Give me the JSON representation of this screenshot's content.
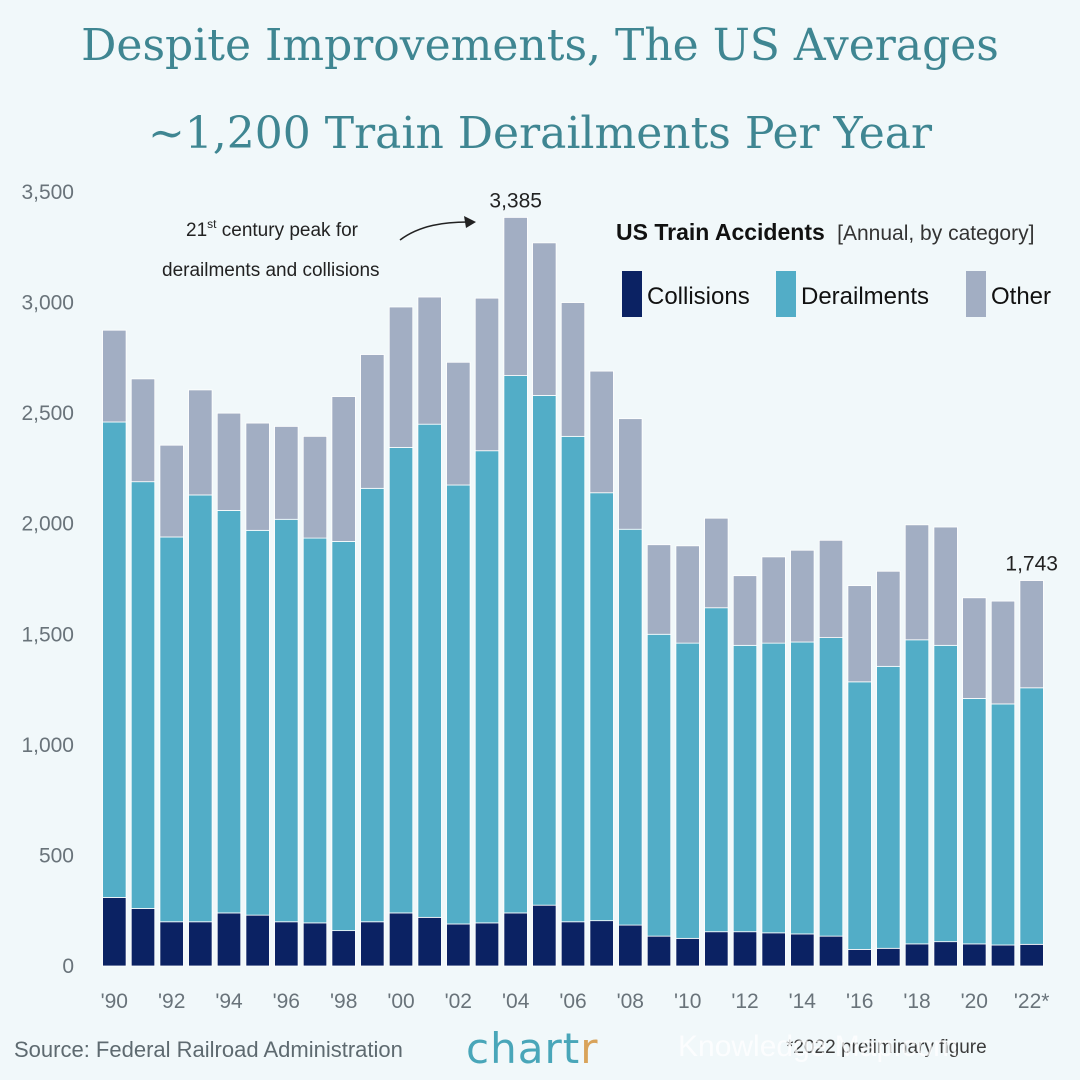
{
  "title": {
    "line1": "Despite Improvements, The US Averages",
    "line2": "~1,200 Train Derailments Per Year"
  },
  "legend": {
    "title": "US Train Accidents",
    "subtitle": "[Annual, by category]"
  },
  "annotation": {
    "line1_base": "21",
    "line1_sup": "st",
    "line1_rest": " century peak for",
    "line2": "derailments and collisions"
  },
  "footer": {
    "source": "Source: Federal Railroad Administration",
    "brand_main": "chart",
    "brand_accent": "r",
    "footnote": "*2022 preliminary figure",
    "watermark": "Knowledge Map.com"
  },
  "colors": {
    "background": "#f1f8fa",
    "collisions": "#0b2263",
    "derailments": "#52adc7",
    "other": "#a2aec3",
    "title": "#3f8692",
    "axis_text": "#69737a"
  },
  "chart_data": {
    "type": "bar",
    "stacked": true,
    "categories": [
      "1990",
      "1991",
      "1992",
      "1993",
      "1994",
      "1995",
      "1996",
      "1997",
      "1998",
      "1999",
      "2000",
      "2001",
      "2002",
      "2003",
      "2004",
      "2005",
      "2006",
      "2007",
      "2008",
      "2009",
      "2010",
      "2011",
      "2012",
      "2013",
      "2014",
      "2015",
      "2016",
      "2017",
      "2018",
      "2019",
      "2020",
      "2021",
      "2022"
    ],
    "x_tick_labels": [
      "'90",
      "'92",
      "'94",
      "'96",
      "'98",
      "'00",
      "'02",
      "'04",
      "'06",
      "'08",
      "'10",
      "'12",
      "'14",
      "'16",
      "'18",
      "'20",
      "'22*"
    ],
    "x_tick_every": 2,
    "series": [
      {
        "name": "Collisions",
        "color": "#0b2263",
        "values": [
          310,
          260,
          200,
          200,
          240,
          230,
          200,
          195,
          160,
          200,
          240,
          220,
          190,
          195,
          240,
          275,
          200,
          205,
          185,
          135,
          125,
          155,
          155,
          150,
          145,
          135,
          75,
          80,
          100,
          110,
          100,
          95,
          98
        ]
      },
      {
        "name": "Derailments",
        "color": "#52adc7",
        "values": [
          2150,
          1930,
          1740,
          1930,
          1820,
          1740,
          1820,
          1740,
          1760,
          1960,
          2105,
          2230,
          1985,
          2135,
          2430,
          2305,
          2195,
          1935,
          1790,
          1365,
          1335,
          1465,
          1295,
          1310,
          1320,
          1350,
          1210,
          1275,
          1375,
          1340,
          1110,
          1090,
          1160
        ]
      },
      {
        "name": "Other",
        "color": "#a2aec3",
        "values": [
          415,
          465,
          415,
          475,
          440,
          485,
          420,
          460,
          655,
          605,
          635,
          575,
          555,
          690,
          715,
          690,
          605,
          550,
          500,
          405,
          440,
          405,
          315,
          390,
          415,
          440,
          435,
          430,
          520,
          535,
          455,
          465,
          485
        ]
      }
    ],
    "totals": [
      2875,
      2655,
      2355,
      2605,
      2500,
      2455,
      2440,
      2395,
      2575,
      2765,
      2980,
      3025,
      2730,
      3020,
      3385,
      3270,
      3000,
      2690,
      2475,
      1905,
      1900,
      2025,
      1765,
      1850,
      1880,
      1925,
      1720,
      1785,
      1995,
      1985,
      1665,
      1650,
      1743
    ],
    "bar_labels": [
      {
        "category": "2004",
        "text": "3,385"
      },
      {
        "category": "2022",
        "text": "1,743"
      }
    ],
    "ylim": [
      0,
      3500
    ],
    "y_ticks": [
      0,
      500,
      1000,
      1500,
      2000,
      2500,
      3000,
      3500
    ],
    "y_tick_labels": [
      "0",
      "500",
      "1,000",
      "1,500",
      "2,000",
      "2,500",
      "3,000",
      "3,500"
    ],
    "xlabel": "",
    "ylabel": "",
    "grid": false,
    "legend_position": "top-right"
  }
}
